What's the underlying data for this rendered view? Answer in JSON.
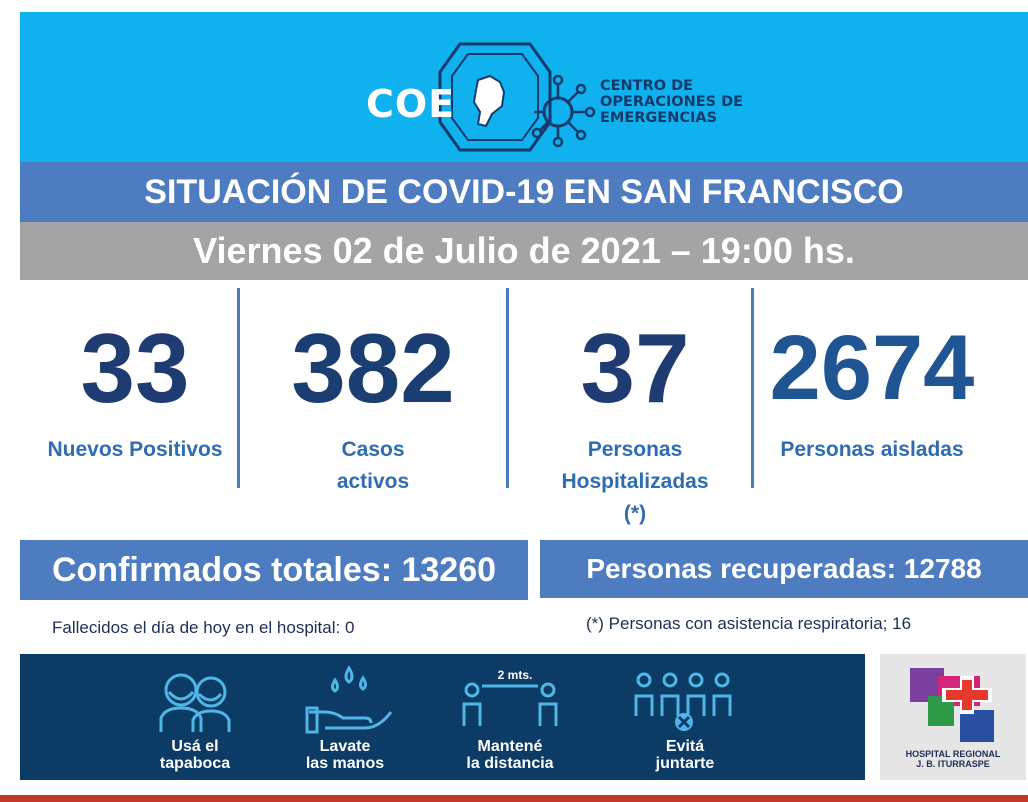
{
  "header": {
    "logo_text": "COE",
    "center_line1": "CENTRO DE",
    "center_line2": "OPERACIONES DE",
    "center_line3": "EMERGENCIAS"
  },
  "title": "SITUACIÓN DE COVID-19 EN SAN FRANCISCO",
  "date": "Viernes 02 de Julio de 2021 – 19:00 hs.",
  "stats": [
    {
      "value": "33",
      "label1": "Nuevos Positivos",
      "label2": "",
      "label3": ""
    },
    {
      "value": "382",
      "label1": "Casos",
      "label2": "activos",
      "label3": ""
    },
    {
      "value": "37",
      "label1": "Personas",
      "label2": "Hospitalizadas",
      "label3": "(*)"
    },
    {
      "value": "2674",
      "label1": "Personas aisladas",
      "label2": "",
      "label3": ""
    }
  ],
  "confirmed": "Confirmados totales: 13260",
  "recovered": "Personas recuperadas: 12788",
  "deaths_note": "Fallecidos el día de hoy en el hospital: 0",
  "resp_note": "(*) Personas con asistencia respiratoria; 16",
  "footer": {
    "items": [
      {
        "line1": "Usá el",
        "line2": "tapaboca",
        "icon": "mask-icon"
      },
      {
        "line1": "Lavate",
        "line2": "las manos",
        "icon": "hand-wash-icon"
      },
      {
        "line1": "Mantené",
        "line2": "la distancia",
        "icon": "distance-icon",
        "distance_label": "2 mts."
      },
      {
        "line1": "Evitá",
        "line2": "juntarte",
        "icon": "crowd-icon"
      }
    ]
  },
  "hospital": {
    "line1": "HOSPITAL REGIONAL",
    "line2": "J. B. ITURRASPE"
  },
  "colors": {
    "header_bg": "#0fb1ee",
    "title_bg": "#4d7cc0",
    "date_bg": "#a4a4a4",
    "number_color": "#1f3c72",
    "label_color": "#2f6db3",
    "footer_bg": "#0c3b66"
  }
}
